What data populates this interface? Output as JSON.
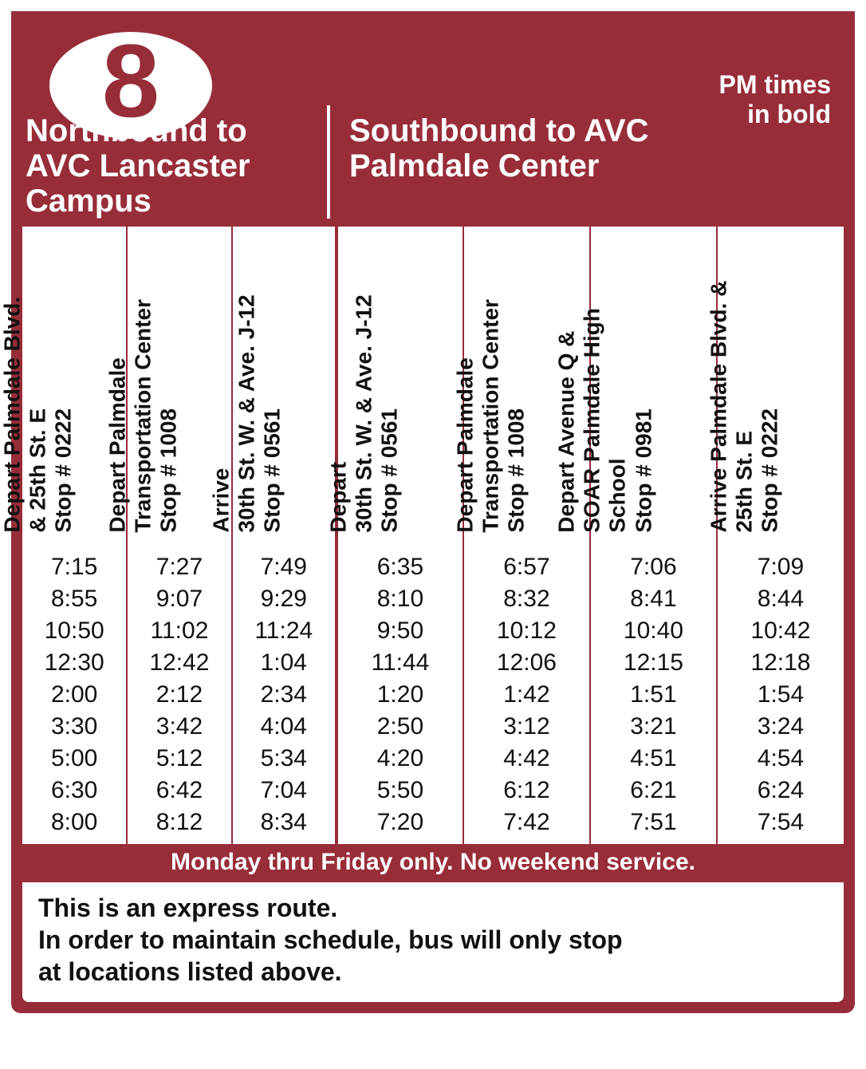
{
  "colors": {
    "brand": "#982d3a",
    "white": "#ffffff",
    "text": "#111111"
  },
  "route_number": "8",
  "legend_line1": "PM times",
  "legend_line2": "in bold",
  "northbound_title_line1": "Northbound to",
  "northbound_title_line2": "AVC Lancaster Campus",
  "southbound_title_line1": "Southbound to AVC",
  "southbound_title_line2": "Palmdale Center",
  "northbound": {
    "columns": [
      {
        "line1": "Depart Palmdale Blvd.",
        "line2": "& 25th St. E",
        "line3": "Stop # 0222"
      },
      {
        "line1": "Depart Palmdale",
        "line2": "Transportation Center",
        "line3": "Stop # 1008"
      },
      {
        "line1": "Arrive",
        "line2": "30th St. W. & Ave. J-12",
        "line3": "Stop # 0561"
      }
    ],
    "rows": [
      [
        {
          "t": "7:15",
          "pm": false
        },
        {
          "t": "7:27",
          "pm": false
        },
        {
          "t": "7:49",
          "pm": false
        }
      ],
      [
        {
          "t": "8:55",
          "pm": false
        },
        {
          "t": "9:07",
          "pm": false
        },
        {
          "t": "9:29",
          "pm": false
        }
      ],
      [
        {
          "t": "10:50",
          "pm": false
        },
        {
          "t": "11:02",
          "pm": false
        },
        {
          "t": "11:24",
          "pm": false
        }
      ],
      [
        {
          "t": "12:30",
          "pm": true
        },
        {
          "t": "12:42",
          "pm": true
        },
        {
          "t": "1:04",
          "pm": true
        }
      ],
      [
        {
          "t": "2:00",
          "pm": true
        },
        {
          "t": "2:12",
          "pm": true
        },
        {
          "t": "2:34",
          "pm": true
        }
      ],
      [
        {
          "t": "3:30",
          "pm": true
        },
        {
          "t": "3:42",
          "pm": true
        },
        {
          "t": "4:04",
          "pm": true
        }
      ],
      [
        {
          "t": "5:00",
          "pm": true
        },
        {
          "t": "5:12",
          "pm": true
        },
        {
          "t": "5:34",
          "pm": true
        }
      ],
      [
        {
          "t": "6:30",
          "pm": true
        },
        {
          "t": "6:42",
          "pm": true
        },
        {
          "t": "7:04",
          "pm": true
        }
      ],
      [
        {
          "t": "8:00",
          "pm": true
        },
        {
          "t": "8:12",
          "pm": true
        },
        {
          "t": "8:34",
          "pm": true
        }
      ]
    ]
  },
  "southbound": {
    "columns": [
      {
        "line1": "Depart",
        "line2": "30th St. W. & Ave. J-12",
        "line3": "Stop # 0561"
      },
      {
        "line1": "Depart Palmdale",
        "line2": "Transportation Center",
        "line3": "Stop # 1008"
      },
      {
        "line1": "Depart Avenue Q &",
        "line2": "SOAR Palmdale High School",
        "line3": "Stop # 0981"
      },
      {
        "line1": "Arrive Palmdale Blvd. &",
        "line2": "25th St. E",
        "line3": "Stop # 0222"
      }
    ],
    "rows": [
      [
        {
          "t": "6:35",
          "pm": false
        },
        {
          "t": "6:57",
          "pm": false
        },
        {
          "t": "7:06",
          "pm": false
        },
        {
          "t": "7:09",
          "pm": false
        }
      ],
      [
        {
          "t": "8:10",
          "pm": false
        },
        {
          "t": "8:32",
          "pm": false
        },
        {
          "t": "8:41",
          "pm": false
        },
        {
          "t": "8:44",
          "pm": false
        }
      ],
      [
        {
          "t": "9:50",
          "pm": false
        },
        {
          "t": "10:12",
          "pm": false
        },
        {
          "t": "10:40",
          "pm": false
        },
        {
          "t": "10:42",
          "pm": false
        }
      ],
      [
        {
          "t": "11:44",
          "pm": false
        },
        {
          "t": "12:06",
          "pm": true
        },
        {
          "t": "12:15",
          "pm": true
        },
        {
          "t": "12:18",
          "pm": true
        }
      ],
      [
        {
          "t": "1:20",
          "pm": true
        },
        {
          "t": "1:42",
          "pm": true
        },
        {
          "t": "1:51",
          "pm": true
        },
        {
          "t": "1:54",
          "pm": true
        }
      ],
      [
        {
          "t": "2:50",
          "pm": true
        },
        {
          "t": "3:12",
          "pm": true
        },
        {
          "t": "3:21",
          "pm": true
        },
        {
          "t": "3:24",
          "pm": true
        }
      ],
      [
        {
          "t": "4:20",
          "pm": true
        },
        {
          "t": "4:42",
          "pm": true
        },
        {
          "t": "4:51",
          "pm": true
        },
        {
          "t": "4:54",
          "pm": true
        }
      ],
      [
        {
          "t": "5:50",
          "pm": true
        },
        {
          "t": "6:12",
          "pm": true
        },
        {
          "t": "6:21",
          "pm": true
        },
        {
          "t": "6:24",
          "pm": true
        }
      ],
      [
        {
          "t": "7:20",
          "pm": true
        },
        {
          "t": "7:42",
          "pm": true
        },
        {
          "t": "7:51",
          "pm": true
        },
        {
          "t": "7:54",
          "pm": true
        }
      ]
    ]
  },
  "footer_bar": "Monday thru Friday only. No weekend service.",
  "footer_note_line1": "This is an express route.",
  "footer_note_line2": "In order to maintain schedule, bus will only stop",
  "footer_note_line3": "at locations listed above."
}
